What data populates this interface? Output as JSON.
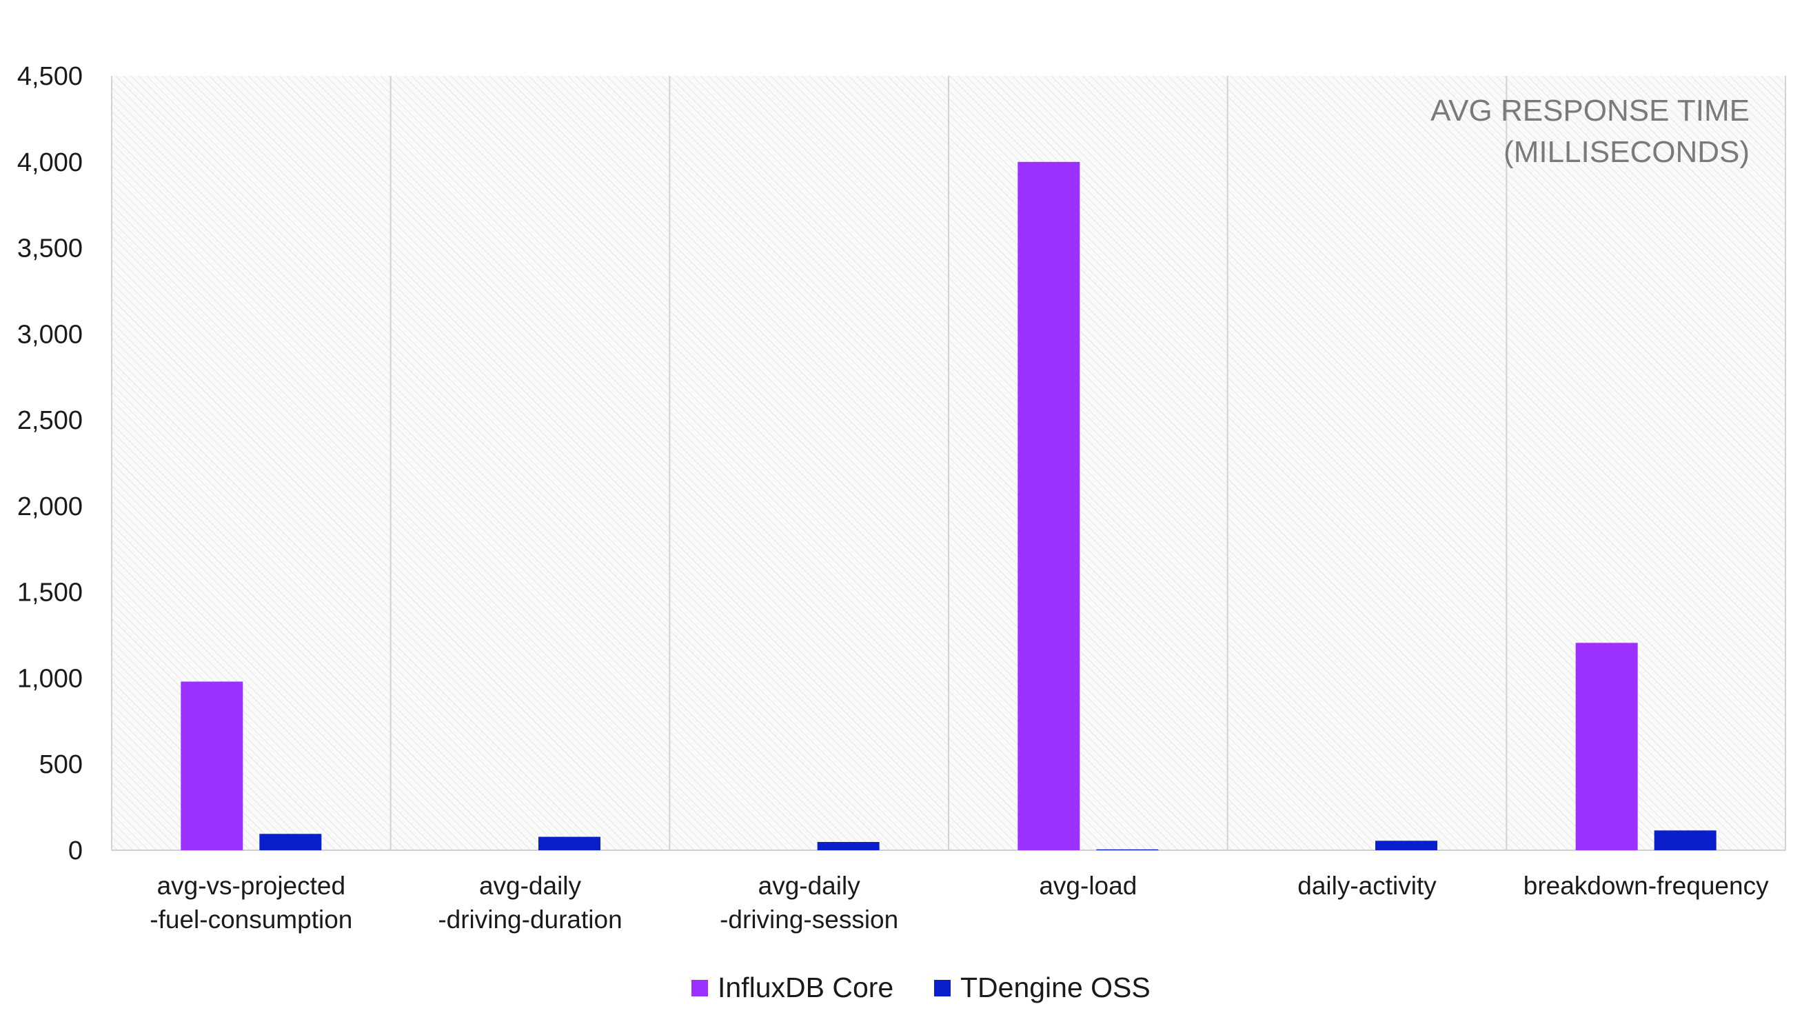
{
  "chart_data": {
    "type": "bar",
    "annotation": [
      "AVG RESPONSE TIME",
      "(MILLISECONDS)"
    ],
    "categories": [
      [
        "avg-vs-projected",
        "-fuel-consumption"
      ],
      [
        "avg-daily",
        "-driving-duration"
      ],
      [
        "avg-daily",
        "-driving-session"
      ],
      [
        "avg-load"
      ],
      [
        "daily-activity"
      ],
      [
        "breakdown-frequency"
      ]
    ],
    "series": [
      {
        "name": "InfluxDB Core",
        "color": "#9b30ff",
        "values": [
          980,
          0,
          0,
          4000,
          0,
          1205
        ]
      },
      {
        "name": "TDengine OSS",
        "color": "#0a1fcc",
        "values": [
          95,
          78,
          48,
          5,
          55,
          115
        ]
      }
    ],
    "yticks": [
      "0",
      "500",
      "1,000",
      "1,500",
      "2,000",
      "2,500",
      "3,000",
      "3,500",
      "4,000",
      "4,500"
    ],
    "ylim": [
      0,
      4500
    ],
    "grid": "vertical-separators",
    "legend": "bottom-center"
  }
}
